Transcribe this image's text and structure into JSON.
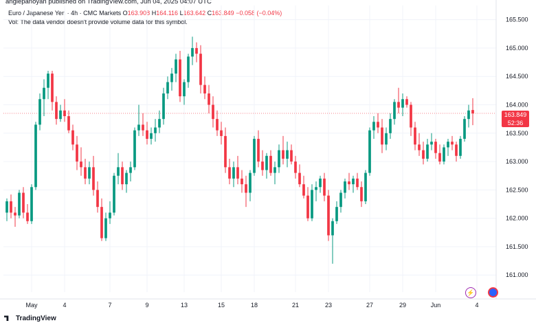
{
  "header": {
    "publisher": "angiepanoyan published on TradingView.com, Jun 04, 2025 04:07 UTC",
    "symbol": "Euro / Japanese Yen · 4h · CMC Markets",
    "open_label": "O",
    "open": "163.908",
    "high_label": "H",
    "high": "164.116",
    "low_label": "L",
    "low": "163.642",
    "close_label": "C",
    "close": "163.849",
    "change": "−0.058 (−0.04%)",
    "volume_note": "Vol: The data vendor doesn't provide volume data for this symbol."
  },
  "price_label": {
    "price": "163.849",
    "countdown": "52:36"
  },
  "brand": "TradingView",
  "colors": {
    "up": "#089981",
    "down": "#f23645",
    "grid": "#f0f3fa",
    "price_line": "#f23645"
  },
  "icons": [
    "lightning-icon",
    "globe-icon",
    "tradingview-logo-icon"
  ],
  "chart_data": {
    "type": "candlestick",
    "title": "Euro / Japanese Yen · 4h · CMC Markets",
    "y_ticks": [
      "165.500",
      "165.000",
      "164.500",
      "164.000",
      "163.500",
      "163.000",
      "162.500",
      "162.000",
      "161.500",
      "161.000"
    ],
    "y_range": [
      160.7,
      165.75
    ],
    "x_ticks": [
      {
        "label": "May",
        "index": 6
      },
      {
        "label": "4",
        "index": 14
      },
      {
        "label": "7",
        "index": 25
      },
      {
        "label": "9",
        "index": 34
      },
      {
        "label": "13",
        "index": 43
      },
      {
        "label": "15",
        "index": 52
      },
      {
        "label": "18",
        "index": 60
      },
      {
        "label": "21",
        "index": 70
      },
      {
        "label": "23",
        "index": 78
      },
      {
        "label": "27",
        "index": 88
      },
      {
        "label": "29",
        "index": 96
      },
      {
        "label": "Jun",
        "index": 104
      },
      {
        "label": "4",
        "index": 114
      }
    ],
    "current_price": 163.849,
    "candles": [
      [
        162.1,
        162.35,
        161.95,
        162.3
      ],
      [
        162.3,
        162.42,
        162.0,
        162.1
      ],
      [
        162.1,
        162.2,
        161.85,
        162.05
      ],
      [
        162.05,
        162.5,
        162.0,
        162.45
      ],
      [
        162.45,
        162.55,
        162.0,
        162.1
      ],
      [
        162.1,
        162.25,
        161.9,
        161.95
      ],
      [
        161.95,
        162.6,
        161.9,
        162.55
      ],
      [
        162.55,
        163.7,
        162.5,
        163.65
      ],
      [
        163.65,
        164.2,
        163.55,
        164.1
      ],
      [
        164.1,
        164.45,
        163.8,
        164.3
      ],
      [
        164.3,
        164.6,
        164.1,
        164.55
      ],
      [
        164.55,
        164.6,
        163.9,
        164.05
      ],
      [
        164.05,
        164.15,
        163.65,
        163.75
      ],
      [
        163.75,
        164.0,
        163.7,
        163.9
      ],
      [
        163.9,
        164.1,
        163.7,
        163.8
      ],
      [
        163.8,
        163.9,
        163.5,
        163.55
      ],
      [
        163.55,
        163.65,
        163.2,
        163.3
      ],
      [
        163.3,
        163.45,
        162.85,
        163.0
      ],
      [
        163.0,
        163.25,
        162.75,
        162.9
      ],
      [
        162.9,
        163.05,
        162.6,
        162.7
      ],
      [
        162.7,
        163.0,
        162.6,
        162.9
      ],
      [
        162.9,
        163.1,
        162.4,
        162.5
      ],
      [
        162.5,
        162.65,
        162.1,
        162.2
      ],
      [
        162.2,
        162.35,
        161.6,
        161.65
      ],
      [
        161.65,
        162.1,
        161.6,
        162.0
      ],
      [
        162.0,
        162.3,
        161.9,
        162.1
      ],
      [
        162.1,
        162.8,
        162.05,
        162.75
      ],
      [
        162.75,
        163.15,
        162.6,
        162.9
      ],
      [
        162.9,
        163.0,
        162.5,
        162.6
      ],
      [
        162.6,
        162.85,
        162.45,
        162.8
      ],
      [
        162.8,
        163.0,
        162.65,
        162.9
      ],
      [
        162.9,
        163.6,
        162.85,
        163.55
      ],
      [
        163.55,
        164.0,
        163.45,
        163.65
      ],
      [
        163.65,
        163.85,
        163.45,
        163.55
      ],
      [
        163.55,
        163.7,
        163.3,
        163.4
      ],
      [
        163.4,
        163.6,
        163.3,
        163.5
      ],
      [
        163.5,
        163.75,
        163.35,
        163.6
      ],
      [
        163.6,
        163.9,
        163.5,
        163.75
      ],
      [
        163.75,
        164.3,
        163.65,
        164.2
      ],
      [
        164.2,
        164.5,
        164.1,
        164.4
      ],
      [
        164.4,
        164.65,
        164.25,
        164.55
      ],
      [
        164.55,
        164.9,
        164.4,
        164.8
      ],
      [
        164.8,
        164.95,
        164.05,
        164.15
      ],
      [
        164.15,
        164.45,
        164.0,
        164.4
      ],
      [
        164.4,
        164.9,
        164.3,
        164.85
      ],
      [
        164.85,
        165.2,
        164.7,
        165.0
      ],
      [
        165.0,
        165.1,
        164.75,
        164.9
      ],
      [
        164.9,
        165.05,
        164.2,
        164.35
      ],
      [
        164.35,
        164.5,
        164.1,
        164.2
      ],
      [
        164.2,
        164.35,
        163.85,
        164.0
      ],
      [
        164.0,
        164.15,
        163.6,
        163.75
      ],
      [
        163.75,
        163.9,
        163.45,
        163.55
      ],
      [
        163.55,
        163.7,
        163.3,
        163.45
      ],
      [
        163.45,
        163.6,
        162.8,
        162.9
      ],
      [
        162.9,
        163.05,
        162.6,
        162.7
      ],
      [
        162.7,
        163.0,
        162.55,
        162.9
      ],
      [
        162.9,
        163.1,
        162.6,
        162.7
      ],
      [
        162.7,
        162.85,
        162.45,
        162.6
      ],
      [
        162.6,
        162.75,
        162.2,
        162.45
      ],
      [
        162.45,
        162.85,
        162.3,
        162.8
      ],
      [
        162.8,
        163.45,
        162.75,
        163.4
      ],
      [
        163.4,
        163.55,
        162.9,
        163.0
      ],
      [
        163.0,
        163.2,
        162.75,
        162.85
      ],
      [
        162.85,
        163.15,
        162.7,
        163.1
      ],
      [
        163.1,
        163.2,
        162.75,
        162.8
      ],
      [
        162.8,
        163.0,
        162.6,
        162.9
      ],
      [
        162.9,
        163.3,
        162.8,
        163.2
      ],
      [
        163.2,
        163.45,
        162.95,
        163.05
      ],
      [
        163.05,
        163.35,
        162.9,
        163.2
      ],
      [
        163.2,
        163.3,
        162.95,
        163.0
      ],
      [
        163.0,
        163.1,
        162.7,
        162.8
      ],
      [
        162.8,
        162.95,
        162.55,
        162.6
      ],
      [
        162.6,
        162.75,
        162.35,
        162.4
      ],
      [
        162.4,
        162.55,
        161.95,
        162.0
      ],
      [
        162.0,
        162.6,
        161.95,
        162.5
      ],
      [
        162.5,
        162.65,
        162.3,
        162.55
      ],
      [
        162.55,
        162.75,
        162.45,
        162.7
      ],
      [
        162.7,
        162.8,
        162.3,
        162.4
      ],
      [
        162.4,
        162.5,
        161.6,
        161.7
      ],
      [
        161.7,
        162.0,
        161.2,
        161.95
      ],
      [
        161.95,
        162.3,
        161.9,
        162.2
      ],
      [
        162.2,
        162.5,
        162.1,
        162.45
      ],
      [
        162.45,
        162.7,
        162.35,
        162.65
      ],
      [
        162.65,
        162.8,
        162.5,
        162.6
      ],
      [
        162.6,
        162.75,
        162.45,
        162.7
      ],
      [
        162.7,
        162.8,
        162.5,
        162.55
      ],
      [
        162.55,
        162.65,
        162.2,
        162.3
      ],
      [
        162.3,
        162.85,
        162.25,
        162.8
      ],
      [
        162.8,
        163.6,
        162.75,
        163.55
      ],
      [
        163.55,
        163.8,
        163.4,
        163.7
      ],
      [
        163.7,
        163.85,
        163.5,
        163.6
      ],
      [
        163.6,
        163.75,
        163.15,
        163.3
      ],
      [
        163.3,
        163.6,
        163.2,
        163.5
      ],
      [
        163.5,
        163.85,
        163.4,
        163.75
      ],
      [
        163.75,
        164.1,
        163.65,
        164.05
      ],
      [
        164.05,
        164.3,
        163.85,
        163.95
      ],
      [
        163.95,
        164.2,
        163.8,
        164.1
      ],
      [
        164.1,
        164.15,
        163.95,
        164.0
      ],
      [
        164.0,
        164.05,
        163.45,
        163.6
      ],
      [
        163.6,
        163.7,
        163.2,
        163.3
      ],
      [
        163.3,
        163.5,
        163.1,
        163.2
      ],
      [
        163.2,
        163.35,
        162.95,
        163.05
      ],
      [
        163.05,
        163.4,
        163.0,
        163.3
      ],
      [
        163.3,
        163.5,
        163.2,
        163.35
      ],
      [
        163.35,
        163.4,
        163.05,
        163.15
      ],
      [
        163.15,
        163.3,
        162.95,
        163.0
      ],
      [
        163.0,
        163.3,
        162.95,
        163.25
      ],
      [
        163.25,
        163.4,
        163.1,
        163.35
      ],
      [
        163.35,
        163.45,
        163.2,
        163.3
      ],
      [
        163.3,
        163.35,
        163.0,
        163.1
      ],
      [
        163.1,
        163.45,
        163.05,
        163.4
      ],
      [
        163.4,
        163.8,
        163.35,
        163.75
      ],
      [
        163.75,
        164.0,
        163.6,
        163.9
      ],
      [
        163.908,
        164.116,
        163.642,
        163.849
      ]
    ]
  }
}
